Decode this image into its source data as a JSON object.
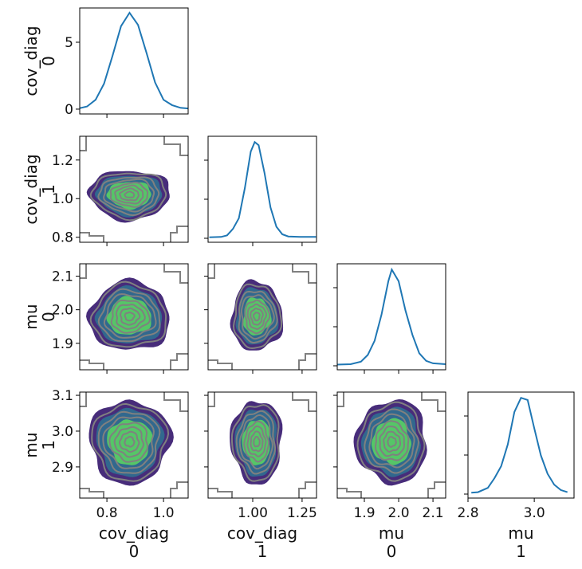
{
  "chart_data": {
    "type": "pair-kde",
    "variables": [
      {
        "name": "cov_diag",
        "index": "0",
        "range": [
          0.704,
          1.087
        ],
        "ticks": [
          "0.8",
          "1.0"
        ],
        "tick_values": [
          0.8,
          1.0
        ],
        "mean": 0.88,
        "sd": 0.055
      },
      {
        "name": "cov_diag",
        "index": "1",
        "range": [
          0.774,
          1.323
        ],
        "ticks": [
          "1.00",
          "1.25"
        ],
        "tick_values": [
          1.0,
          1.25
        ],
        "y_ticks": [
          "1.2",
          "1.0",
          "0.8"
        ],
        "y_tick_values": [
          1.2,
          1.0,
          0.8
        ],
        "mean": 1.02,
        "sd": 0.05
      },
      {
        "name": "mu",
        "index": "0",
        "range": [
          1.821,
          2.137
        ],
        "ticks": [
          "1.9",
          "2.0",
          "2.1"
        ],
        "tick_values": [
          1.9,
          2.0,
          2.1
        ],
        "y_ticks": [
          "2.1",
          "2.0",
          "1.9"
        ],
        "y_tick_values": [
          2.1,
          2.0,
          1.9
        ],
        "mean": 1.98,
        "sd": 0.04
      },
      {
        "name": "mu",
        "index": "1",
        "range": [
          2.8,
          3.12
        ],
        "y_range": [
          2.813,
          3.109
        ],
        "ticks": [
          "2.8",
          "3.0"
        ],
        "tick_values": [
          2.8,
          3.0
        ],
        "y_ticks": [
          "3.1",
          "3.0",
          "2.9"
        ],
        "y_tick_values": [
          3.1,
          3.0,
          2.9
        ],
        "mean": 2.97,
        "sd": 0.045
      }
    ],
    "diagonal_density_y": {
      "range": [
        -0.36,
        7.56
      ],
      "ticks": [
        "5",
        "0"
      ],
      "tick_values": [
        5,
        0
      ]
    },
    "diagonal_kde": [
      {
        "x": [
          0.7,
          0.73,
          0.76,
          0.79,
          0.82,
          0.85,
          0.88,
          0.91,
          0.94,
          0.97,
          1.0,
          1.03,
          1.06,
          1.087
        ],
        "y": [
          0.05,
          0.2,
          0.7,
          1.9,
          4.0,
          6.2,
          7.2,
          6.3,
          4.2,
          2.0,
          0.7,
          0.3,
          0.1,
          0.05
        ]
      },
      {
        "x": [
          0.78,
          0.84,
          0.87,
          0.9,
          0.93,
          0.96,
          0.99,
          1.01,
          1.03,
          1.06,
          1.09,
          1.12,
          1.15,
          1.18,
          1.24,
          1.32
        ],
        "y": [
          0.02,
          0.05,
          0.2,
          0.8,
          1.8,
          4.6,
          8.0,
          8.9,
          8.6,
          6.0,
          2.8,
          1.0,
          0.3,
          0.1,
          0.05,
          0.05
        ]
      },
      {
        "x": [
          1.821,
          1.86,
          1.89,
          1.91,
          1.93,
          1.95,
          1.97,
          1.98,
          2.0,
          2.02,
          2.04,
          2.06,
          2.08,
          2.1,
          2.137
        ],
        "y": [
          0.05,
          0.1,
          0.4,
          1.2,
          2.9,
          6.0,
          10.0,
          11.4,
          10.0,
          6.5,
          3.6,
          1.4,
          0.5,
          0.2,
          0.1
        ]
      },
      {
        "x": [
          2.81,
          2.83,
          2.86,
          2.88,
          2.9,
          2.92,
          2.94,
          2.96,
          2.98,
          3.0,
          3.02,
          3.04,
          3.06,
          3.08,
          3.1
        ],
        "y": [
          0.05,
          0.1,
          0.5,
          1.4,
          2.5,
          4.5,
          7.5,
          8.8,
          8.6,
          6.0,
          3.5,
          1.8,
          0.8,
          0.3,
          0.1
        ]
      }
    ],
    "kde_2d": {
      "fill_levels_sd": [
        2.6,
        2.1,
        1.4
      ],
      "fill_colors": [
        "#472c7a",
        "#31688e",
        "#55c667"
      ],
      "contour_levels_sd": [
        2.35,
        1.9,
        1.6,
        1.2,
        0.9,
        0.6,
        0.3
      ],
      "contour_color": "#808080"
    },
    "line_color": "#1f77b4",
    "grid": false
  }
}
